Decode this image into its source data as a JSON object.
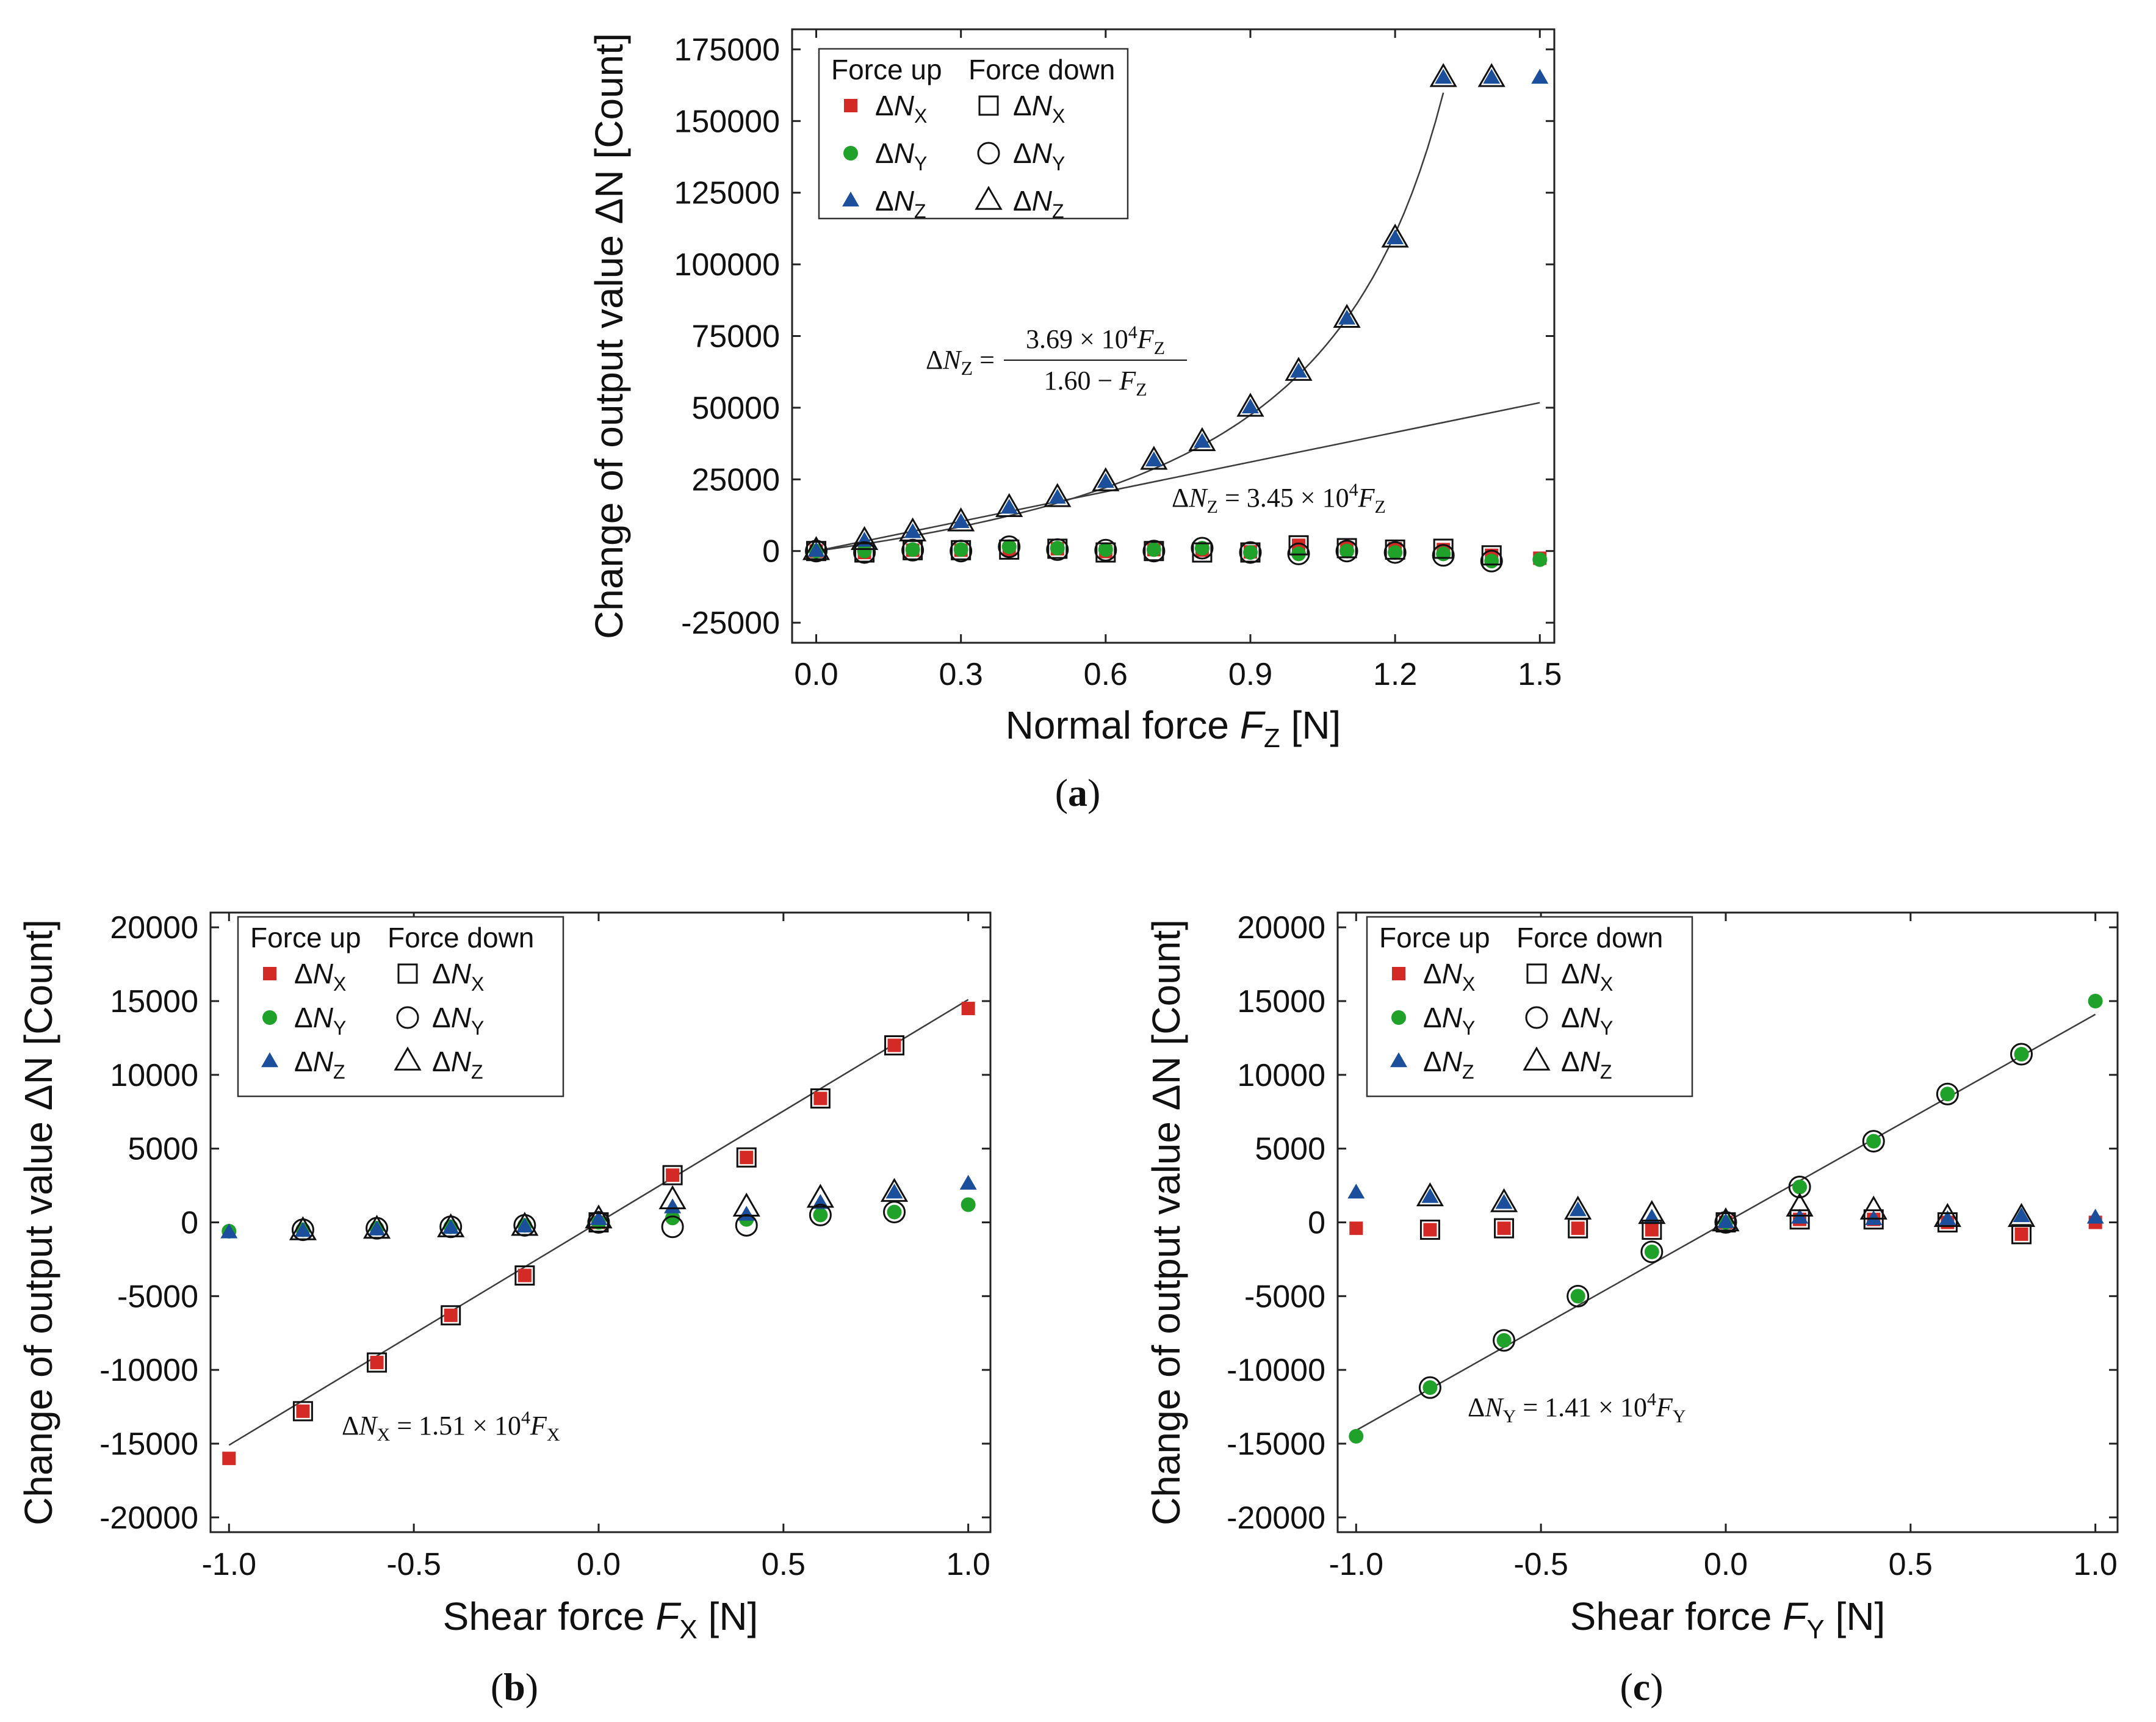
{
  "colors": {
    "x": "#d42a25",
    "y": "#1fa12a",
    "z": "#1b4e9b",
    "axis": "#222222",
    "fit": "#3c3c3c"
  },
  "legend": {
    "force_up": "Force up",
    "force_down": "Force down",
    "items": [
      {
        "series": "x",
        "prefix": "ΔN",
        "sub": "X"
      },
      {
        "series": "y",
        "prefix": "ΔN",
        "sub": "Y"
      },
      {
        "series": "z",
        "prefix": "ΔN",
        "sub": "Z"
      }
    ]
  },
  "chart_data": [
    {
      "id": "a",
      "type": "scatter",
      "caption": "(a)",
      "ylabel": "Change of output value ΔN [Count]",
      "xlabel": {
        "prefix": "Normal force ",
        "var": "F",
        "sub": "Z",
        "suffix": " [N]"
      },
      "xlim": [
        -0.05,
        1.53
      ],
      "ylim": [
        -32000,
        182000
      ],
      "xticks": [
        0.0,
        0.3,
        0.6,
        0.9,
        1.2,
        1.5
      ],
      "xtick_labels": [
        "0.0",
        "0.3",
        "0.6",
        "0.9",
        "1.2",
        "1.5"
      ],
      "yticks": [
        -25000,
        0,
        25000,
        50000,
        75000,
        100000,
        125000,
        150000,
        175000
      ],
      "ytick_labels": [
        "-25000",
        "0",
        "25000",
        "50000",
        "75000",
        "100000",
        "125000",
        "150000",
        "175000"
      ],
      "x": [
        0.0,
        0.1,
        0.2,
        0.3,
        0.4,
        0.5,
        0.6,
        0.7,
        0.8,
        0.9,
        1.0,
        1.1,
        1.2,
        1.3,
        1.4,
        1.5
      ],
      "series": [
        {
          "name": "ΔN_X force up",
          "key": "x",
          "filled": true,
          "values": [
            0,
            -500,
            300,
            300,
            500,
            800,
            -200,
            500,
            300,
            -300,
            2000,
            1000,
            800,
            500,
            -1500,
            -2500
          ]
        },
        {
          "name": "ΔN_Y force up",
          "key": "y",
          "filled": true,
          "values": [
            0,
            0,
            500,
            500,
            1500,
            1000,
            500,
            500,
            1000,
            -500,
            -1000,
            0,
            -500,
            -1000,
            -3500,
            -3000
          ]
        },
        {
          "name": "ΔN_Z force up",
          "key": "z",
          "filled": true,
          "values": [
            0,
            3500,
            6500,
            10000,
            15000,
            18500,
            24000,
            31500,
            38000,
            50000,
            62500,
            81000,
            109000,
            165000,
            165000,
            165000
          ]
        },
        {
          "name": "ΔN_X force down",
          "key": "x",
          "filled": false,
          "values": [
            0,
            -500,
            300,
            300,
            500,
            800,
            -500,
            0,
            -500,
            -500,
            2000,
            1000,
            500,
            800,
            -1500,
            null
          ]
        },
        {
          "name": "ΔN_Y force down",
          "key": "y",
          "filled": false,
          "values": [
            0,
            -500,
            300,
            0,
            1500,
            500,
            300,
            0,
            1000,
            -500,
            -1000,
            0,
            -500,
            -1500,
            -3500,
            null
          ]
        },
        {
          "name": "ΔN_Z force down",
          "key": "z",
          "filled": false,
          "values": [
            0,
            3500,
            6500,
            10000,
            15000,
            18500,
            24000,
            31500,
            38000,
            50000,
            62500,
            81000,
            109000,
            165000,
            165000,
            null
          ]
        }
      ],
      "fits": [
        {
          "kind": "rational",
          "a": 36900,
          "b": 1.6,
          "xrange": [
            0.0,
            1.3
          ]
        },
        {
          "kind": "linear",
          "slope": 34500,
          "xrange": [
            0.0,
            1.5
          ]
        }
      ],
      "equations": [
        {
          "lhs_prefix": "ΔN",
          "lhs_sub": "Z",
          "num": "3.69 × 10",
          "num_sup": "4",
          "num_var": "F",
          "num_sub": "Z",
          "den": "1.60 − ",
          "den_var": "F",
          "den_sub": "Z"
        },
        {
          "lhs_prefix": "ΔN",
          "lhs_sub": "Z",
          "rhs": " = 3.45 × 10",
          "rhs_sup": "4",
          "rhs_var": "F",
          "rhs_sub": "Z"
        }
      ]
    },
    {
      "id": "b",
      "type": "scatter",
      "caption": "(b)",
      "ylabel": "Change of output value ΔN [Count]",
      "xlabel": {
        "prefix": "Shear force ",
        "var": "F",
        "sub": "X",
        "suffix": " [N]"
      },
      "xlim": [
        -1.05,
        1.06
      ],
      "ylim": [
        -21000,
        21000
      ],
      "xticks": [
        -1.0,
        -0.5,
        0.0,
        0.5,
        1.0
      ],
      "xtick_labels": [
        "-1.0",
        "-0.5",
        "0.0",
        "0.5",
        "1.0"
      ],
      "yticks": [
        -20000,
        -15000,
        -10000,
        -5000,
        0,
        5000,
        10000,
        15000,
        20000
      ],
      "ytick_labels": [
        "-20000",
        "-15000",
        "-10000",
        "-5000",
        "0",
        "5000",
        "10000",
        "15000",
        "20000"
      ],
      "x": [
        -1.0,
        -0.8,
        -0.6,
        -0.4,
        -0.2,
        0.0,
        0.2,
        0.4,
        0.6,
        0.8,
        1.0
      ],
      "series": [
        {
          "name": "ΔN_X force up",
          "key": "x",
          "filled": true,
          "values": [
            -16000,
            -12800,
            -9500,
            -6300,
            -3600,
            0,
            3200,
            4400,
            8400,
            12000,
            14500
          ]
        },
        {
          "name": "ΔN_Y force up",
          "key": "y",
          "filled": true,
          "values": [
            -600,
            -500,
            -400,
            -300,
            -200,
            0,
            300,
            200,
            500,
            700,
            1200
          ]
        },
        {
          "name": "ΔN_Z force up",
          "key": "z",
          "filled": true,
          "values": [
            -700,
            -600,
            -500,
            -400,
            -300,
            200,
            1000,
            500,
            1300,
            2000,
            2600
          ]
        },
        {
          "name": "ΔN_X force down",
          "key": "x",
          "filled": false,
          "values": [
            null,
            -12800,
            -9500,
            -6300,
            -3600,
            0,
            3200,
            4400,
            8400,
            12000,
            null
          ]
        },
        {
          "name": "ΔN_Y force down",
          "key": "y",
          "filled": false,
          "values": [
            null,
            -500,
            -400,
            -300,
            -200,
            0,
            -300,
            -200,
            500,
            700,
            null
          ]
        },
        {
          "name": "ΔN_Z force down",
          "key": "z",
          "filled": false,
          "values": [
            null,
            -600,
            -500,
            -400,
            -300,
            200,
            1500,
            1000,
            1600,
            2000,
            null
          ]
        }
      ],
      "fits": [
        {
          "kind": "linear",
          "slope": 15100,
          "xrange": [
            -1.0,
            1.0
          ]
        }
      ],
      "equations": [
        {
          "lhs_prefix": "ΔN",
          "lhs_sub": "X",
          "rhs": " = 1.51 × 10",
          "rhs_sup": "4",
          "rhs_var": "F",
          "rhs_sub": "X"
        }
      ]
    },
    {
      "id": "c",
      "type": "scatter",
      "caption": "(c)",
      "ylabel": "Change of output value ΔN [Count]",
      "xlabel": {
        "prefix": "Shear force ",
        "var": "F",
        "sub": "Y",
        "suffix": " [N]"
      },
      "xlim": [
        -1.05,
        1.06
      ],
      "ylim": [
        -21000,
        21000
      ],
      "xticks": [
        -1.0,
        -0.5,
        0.0,
        0.5,
        1.0
      ],
      "xtick_labels": [
        "-1.0",
        "-0.5",
        "0.0",
        "0.5",
        "1.0"
      ],
      "yticks": [
        -20000,
        -15000,
        -10000,
        -5000,
        0,
        5000,
        10000,
        15000,
        20000
      ],
      "ytick_labels": [
        "-20000",
        "-15000",
        "-10000",
        "-5000",
        "0",
        "5000",
        "10000",
        "15000",
        "20000"
      ],
      "x": [
        -1.0,
        -0.8,
        -0.6,
        -0.4,
        -0.2,
        0.0,
        0.2,
        0.4,
        0.6,
        0.8,
        1.0
      ],
      "series": [
        {
          "name": "ΔN_X force up",
          "key": "x",
          "filled": true,
          "values": [
            -400,
            -500,
            -400,
            -400,
            -500,
            0,
            200,
            200,
            0,
            -800,
            0
          ]
        },
        {
          "name": "ΔN_Y force up",
          "key": "y",
          "filled": true,
          "values": [
            -14500,
            -11200,
            -8000,
            -5000,
            -2000,
            0,
            2400,
            5500,
            8700,
            11400,
            15000
          ]
        },
        {
          "name": "ΔN_Z force up",
          "key": "z",
          "filled": true,
          "values": [
            2000,
            1700,
            1300,
            800,
            300,
            0,
            300,
            200,
            200,
            400,
            300
          ]
        },
        {
          "name": "ΔN_X force down",
          "key": "x",
          "filled": false,
          "values": [
            null,
            -500,
            -400,
            -400,
            -500,
            0,
            200,
            200,
            0,
            -800,
            null
          ]
        },
        {
          "name": "ΔN_Y force down",
          "key": "y",
          "filled": false,
          "values": [
            null,
            -11200,
            -8000,
            -5000,
            -2000,
            0,
            2400,
            5500,
            8700,
            11400,
            null
          ]
        },
        {
          "name": "ΔN_Z force down",
          "key": "z",
          "filled": false,
          "values": [
            null,
            1700,
            1300,
            800,
            500,
            0,
            1000,
            800,
            300,
            300,
            null
          ]
        }
      ],
      "fits": [
        {
          "kind": "linear",
          "slope": 14100,
          "xrange": [
            -1.0,
            1.0
          ]
        }
      ],
      "equations": [
        {
          "lhs_prefix": "ΔN",
          "lhs_sub": "Y",
          "rhs": " = 1.41 × 10",
          "rhs_sup": "4",
          "rhs_var": "F",
          "rhs_sub": "Y"
        }
      ]
    }
  ]
}
